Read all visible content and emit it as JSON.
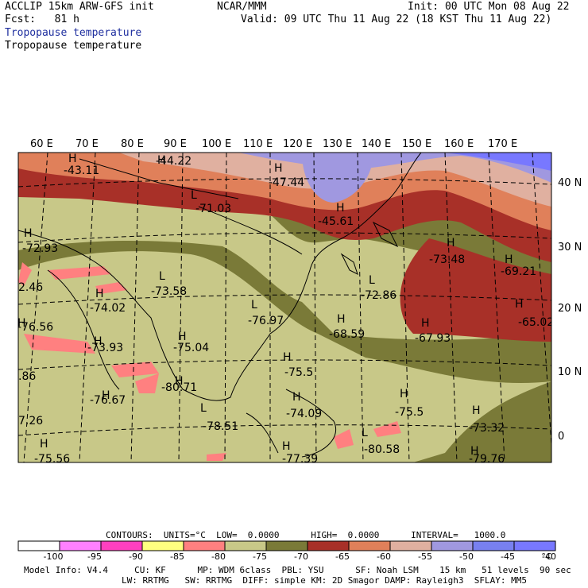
{
  "header": {
    "model_line": "ACCLIP 15km ARW-GFS init",
    "fcst_line": "Fcst:   81 h",
    "center": "NCAR/MMM",
    "init_line": "Init: 00 UTC Mon 08 Aug 22",
    "valid_line": "Valid: 09 UTC Thu 11 Aug 22 (18 KST Thu 11 Aug 22)",
    "field_title_1": "Tropopause temperature",
    "field_title_2": "Tropopause temperature"
  },
  "map": {
    "lon_labels": [
      "60 E",
      "70 E",
      "80 E",
      "90 E",
      "100 E",
      "110 E",
      "120 E",
      "130 E",
      "140 E",
      "150 E",
      "160 E",
      "170 E"
    ],
    "lat_labels": [
      "40 N",
      "30 N",
      "20 N",
      "10 N",
      "0"
    ],
    "extrema": [
      {
        "kind": "H",
        "value": "-43.11"
      },
      {
        "kind": "H",
        "value": "-44.22"
      },
      {
        "kind": "H",
        "value": "-47.44"
      },
      {
        "kind": "L",
        "value": "-71.03"
      },
      {
        "kind": "H",
        "value": "-45.61"
      },
      {
        "kind": "H",
        "value": "-72.93"
      },
      {
        "kind": "H",
        "value": "-73.48"
      },
      {
        "kind": "H",
        "value": "-69.21"
      },
      {
        "kind": "L",
        "value": "-73.58"
      },
      {
        "kind": "H",
        "value": "-74.02"
      },
      {
        "kind": "L",
        "value": "-72.86"
      },
      {
        "kind": "L",
        "value": "-76.97"
      },
      {
        "kind": "H",
        "value": "-65.02"
      },
      {
        "kind": "H",
        "value": "-76.56"
      },
      {
        "kind": "H",
        "value": "-68.59"
      },
      {
        "kind": "H",
        "value": "-67.93"
      },
      {
        "kind": "H",
        "value": "-73.93"
      },
      {
        "kind": "H",
        "value": "-75.04"
      },
      {
        "kind": "H",
        "value": "-75.5"
      },
      {
        "kind": "H",
        "value": "-80.71"
      },
      {
        "kind": "H",
        "value": "-76.67"
      },
      {
        "kind": "H",
        "value": "-75.5"
      },
      {
        "kind": "H",
        "value": "-74.09"
      },
      {
        "kind": "L",
        "value": "-78.51"
      },
      {
        "kind": "H",
        "value": "-73.32"
      },
      {
        "kind": "L",
        "value": "-80.58"
      },
      {
        "kind": "H",
        "value": "-75.56"
      },
      {
        "kind": "H",
        "value": "-77.39"
      },
      {
        "kind": "H",
        "value": "-79.76"
      },
      {
        "kind": "",
        "value": "2.46"
      },
      {
        "kind": "",
        "value": ".86"
      },
      {
        "kind": "",
        "value": "7.26"
      }
    ]
  },
  "contours_line": "CONTOURS:  UNITS=°C  LOW=  0.0000      HIGH=  0.0000      INTERVAL=   1000.0",
  "colorbar": {
    "labels": [
      "-100",
      "-95",
      "-90",
      "-85",
      "-80",
      "-75",
      "-70",
      "-65",
      "-60",
      "-55",
      "-50",
      "-45",
      "-40",
      "°C"
    ],
    "colors": [
      "#ffffff",
      "#ff80ff",
      "#ff40c0",
      "#ffff80",
      "#ff8080",
      "#c8c888",
      "#7a7a38",
      "#a83028",
      "#e0805a",
      "#e0b0a0",
      "#a098e0",
      "#7880f0",
      "#7878ff"
    ]
  },
  "footer": {
    "line1": "Model Info: V4.4     CU: KF      MP: WDM 6class  PBL: YSU      SF: Noah LSM    15 km   51 levels  90 sec",
    "line2": "LW: RRTMG   SW: RRTMG  DIFF: simple KM: 2D Smagor DAMP: Rayleigh3  SFLAY: MM5"
  }
}
